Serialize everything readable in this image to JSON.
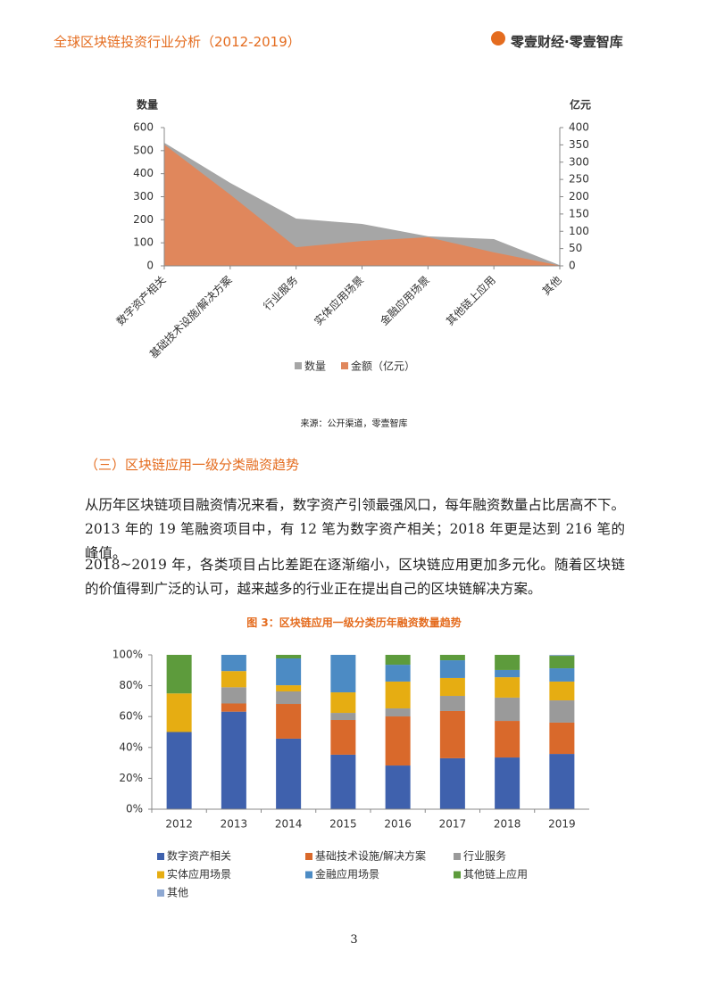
{
  "header": {
    "title": "全球区块链投资行业分析（2012-2019）",
    "logo": "零壹财经·零壹智库"
  },
  "chart_data": [
    {
      "type": "area",
      "y_label": "数量",
      "y2_label": "亿元",
      "categories": [
        "数字资产相关",
        "基础技术设施/解决方案",
        "行业服务",
        "实体应用场景",
        "金融应用场景",
        "其他链上应用",
        "其他"
      ],
      "series": [
        {
          "name": "数量",
          "color": "#a6a6a6",
          "values": [
            534,
            360,
            205,
            182,
            128,
            116,
            3
          ]
        },
        {
          "name": "金额（亿元）",
          "color": "#e0875c",
          "axis": "y2",
          "values": [
            351,
            206,
            54,
            72,
            83,
            39,
            1
          ]
        }
      ],
      "ylim": [
        0,
        600
      ],
      "yticks": [
        0,
        100,
        200,
        300,
        400,
        500,
        600
      ],
      "y2lim": [
        0,
        400
      ],
      "y2ticks": [
        0,
        50,
        100,
        150,
        200,
        250,
        300,
        350,
        400
      ],
      "grid": false,
      "legend": "bottom"
    },
    {
      "type": "stacked-bar",
      "categories": [
        "2012",
        "2013",
        "2014",
        "2015",
        "2016",
        "2017",
        "2018",
        "2019"
      ],
      "series": [
        {
          "name": "数字资产相关",
          "color": "#3f61ad",
          "values": [
            50,
            63.2,
            45.7,
            35.3,
            28.3,
            33.0,
            33.5,
            35.8
          ]
        },
        {
          "name": "基础技术设施/解决方案",
          "color": "#d9692b",
          "values": [
            0,
            5.3,
            22.5,
            22.5,
            31.8,
            30.6,
            23.7,
            20.3
          ]
        },
        {
          "name": "行业服务",
          "color": "#9a9a9a",
          "values": [
            0,
            10.5,
            8.1,
            4.6,
            5.2,
            9.8,
            15.1,
            14.4
          ]
        },
        {
          "name": "实体应用场景",
          "color": "#e6ad12",
          "values": [
            25,
            10.5,
            4.0,
            13.3,
            17.4,
            11.6,
            13.2,
            12.2
          ]
        },
        {
          "name": "金融应用场景",
          "color": "#4c8bc4",
          "values": [
            0,
            10.5,
            17.4,
            24.3,
            10.9,
            11.5,
            4.7,
            8.6
          ]
        },
        {
          "name": "其他链上应用",
          "color": "#5d9b3c",
          "values": [
            25,
            0,
            2.3,
            0,
            6.4,
            3.5,
            9.8,
            8.1
          ]
        },
        {
          "name": "其他",
          "color": "#8ea8d2",
          "values": [
            0,
            0,
            0,
            0,
            0,
            0,
            0,
            0.6
          ]
        }
      ],
      "ylim": [
        0,
        100
      ],
      "yticks": [
        {
          "value": 0,
          "label": "0%"
        },
        {
          "value": 20,
          "label": "20%"
        },
        {
          "value": 40,
          "label": "40%"
        },
        {
          "value": 60,
          "label": "60%"
        },
        {
          "value": 80,
          "label": "80%"
        },
        {
          "value": 100,
          "label": "100%"
        }
      ],
      "grid": false,
      "legend": "bottom"
    }
  ],
  "source": "来源：公开渠道，零壹智库",
  "section_title": "（三）区块链应用一级分类融资趋势",
  "paragraphs": [
    "从历年区块链项目融资情况来看，数字资产引领最强风口，每年融资数量占比居高不下。2013 年的 19 笔融资项目中，有 12 笔为数字资产相关；2018 年更是达到 216 笔的峰值。",
    "2018~2019 年，各类项目占比差距在逐渐缩小，区块链应用更加多元化。随着区块链的价值得到广泛的认可，越来越多的行业正在提出自己的区块链解决方案。"
  ],
  "figure_caption": "图 3：区块链应用一级分类历年融资数量趋势",
  "page_number": "3"
}
